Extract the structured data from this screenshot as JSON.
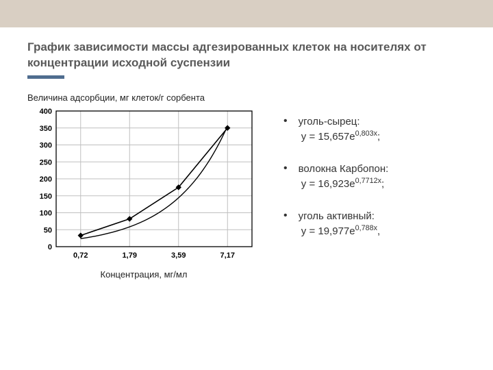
{
  "title": "График зависимости массы адгезированных клеток на носителях от концентрации исходной суспензии",
  "chart": {
    "type": "line",
    "ylabel": "Величина адсорбции, мг клеток/г сорбента",
    "xlabel": "Концентрация, мг/мл",
    "x_categories": [
      "0,72",
      "1,79",
      "3,59",
      "7,17"
    ],
    "x_numeric": [
      0.72,
      1.79,
      3.59,
      7.17
    ],
    "ylim": [
      0,
      400
    ],
    "ytick_step": 50,
    "grid_color": "#bfbfbf",
    "axis_color": "#000000",
    "background": "#ffffff",
    "series": [
      {
        "name": "data-line",
        "values": [
          33,
          82,
          175,
          350
        ],
        "color": "#000000",
        "marker": "diamond",
        "marker_size": 7,
        "line_width": 1.6
      }
    ],
    "trend": {
      "a": 17.5,
      "b": 0.42,
      "color": "#000000",
      "line_width": 1.4
    },
    "axis_font_size": 11,
    "axis_font_weight": "bold"
  },
  "equations": [
    {
      "name": "уголь-сырец",
      "a": "15,657",
      "b": "0,803"
    },
    {
      "name": "волокна Карбопон",
      "a": "16,923",
      "b": "0,7712"
    },
    {
      "name": "уголь активный",
      "a": "19,977",
      "b": "0,788"
    }
  ],
  "colors": {
    "top_band": "#d9cfc3",
    "accent": "#4f6d8f",
    "title": "#595959"
  }
}
